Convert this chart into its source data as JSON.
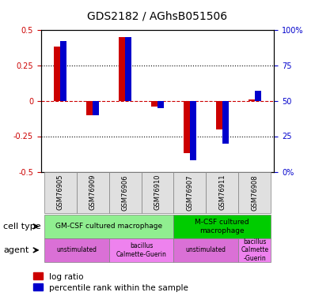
{
  "title": "GDS2182 / AGhsB051506",
  "samples": [
    "GSM76905",
    "GSM76909",
    "GSM76906",
    "GSM76910",
    "GSM76907",
    "GSM76911",
    "GSM76908"
  ],
  "log_ratio": [
    0.38,
    -0.1,
    0.45,
    -0.04,
    -0.37,
    -0.2,
    0.01
  ],
  "percentile_rank": [
    92,
    40,
    95,
    45,
    8,
    20,
    57
  ],
  "ylim": [
    -0.5,
    0.5
  ],
  "yticks_left": [
    -0.5,
    -0.25,
    0,
    0.25,
    0.5
  ],
  "yticks_right": [
    0,
    25,
    50,
    75,
    100
  ],
  "dotted_lines": [
    0.25,
    -0.25
  ],
  "red_line_y": 0,
  "bar_width": 0.4,
  "blue_bar_width": 0.2,
  "cell_type_row": [
    {
      "label": "GM-CSF cultured macrophage",
      "start": 0,
      "end": 4,
      "color": "#90EE90"
    },
    {
      "label": "M-CSF cultured\nmacrophage",
      "start": 4,
      "end": 7,
      "color": "#00CC00"
    }
  ],
  "agent_row": [
    {
      "label": "unstimulated",
      "start": 0,
      "end": 2,
      "color": "#DA70D6"
    },
    {
      "label": "bacillus\nCalmette-Guerin",
      "start": 2,
      "end": 4,
      "color": "#EE82EE"
    },
    {
      "label": "unstimulated",
      "start": 4,
      "end": 6,
      "color": "#DA70D6"
    },
    {
      "label": "bacillus\nCalmette\n-Guerin",
      "start": 6,
      "end": 7,
      "color": "#EE82EE"
    }
  ],
  "legend_red": "log ratio",
  "legend_blue": "percentile rank within the sample",
  "left_label": "cell type",
  "right_label": "agent",
  "grid_color": "#aaaaaa",
  "red_color": "#CC0000",
  "blue_color": "#0000CC",
  "zero_line_color": "#CC0000"
}
